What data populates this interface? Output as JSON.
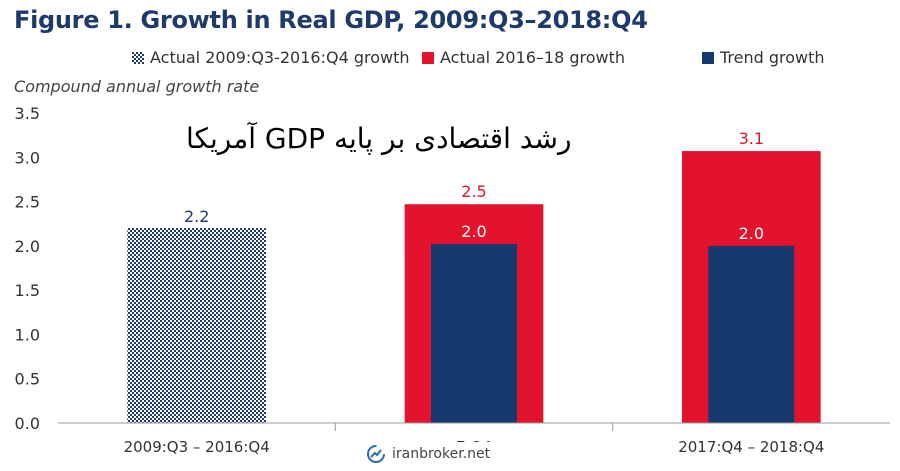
{
  "header": {
    "title": "Figure 1. Growth in Real GDP, 2009:Q3–2018:Q4"
  },
  "overlay": {
    "text": "رشد اقتصادی بر پایه GDP آمریکا"
  },
  "watermark": {
    "text": "iranbroker.net",
    "icon": "broker-logo-icon"
  },
  "colors": {
    "actual_hist": "#1d3a6b",
    "actual_recent": "#e3122d",
    "trend": "#163a70",
    "title": "#1d3a6b"
  },
  "chart_data": {
    "type": "bar",
    "title": "Figure 1. Growth in Real GDP, 2009:Q3–2018:Q4",
    "ylabel": "Compound annual growth rate",
    "xlabel": "",
    "ylim": [
      0,
      3.5
    ],
    "yticks": [
      "0.0",
      "0.5",
      "1.0",
      "1.5",
      "2.0",
      "2.5",
      "3.0",
      "3.5"
    ],
    "grid": false,
    "legend_position": "top",
    "categories": [
      "2009:Q3 – 2016:Q4",
      "7:Q4",
      "2017:Q4 – 2018:Q4"
    ],
    "series": [
      {
        "name": "Actual 2009:Q3-2016:Q4 growth",
        "pattern": "hatched",
        "values": [
          2.2,
          null,
          null
        ],
        "labels": [
          "2.2",
          "",
          ""
        ]
      },
      {
        "name": "Actual 2016–18 growth",
        "pattern": "solid",
        "values": [
          null,
          2.47,
          3.07
        ],
        "labels": [
          "",
          "2.5",
          "3.1"
        ]
      },
      {
        "name": "Trend growth",
        "pattern": "solid",
        "values": [
          null,
          2.02,
          2.0
        ],
        "labels": [
          "",
          "2.0",
          "2.0"
        ]
      }
    ]
  }
}
